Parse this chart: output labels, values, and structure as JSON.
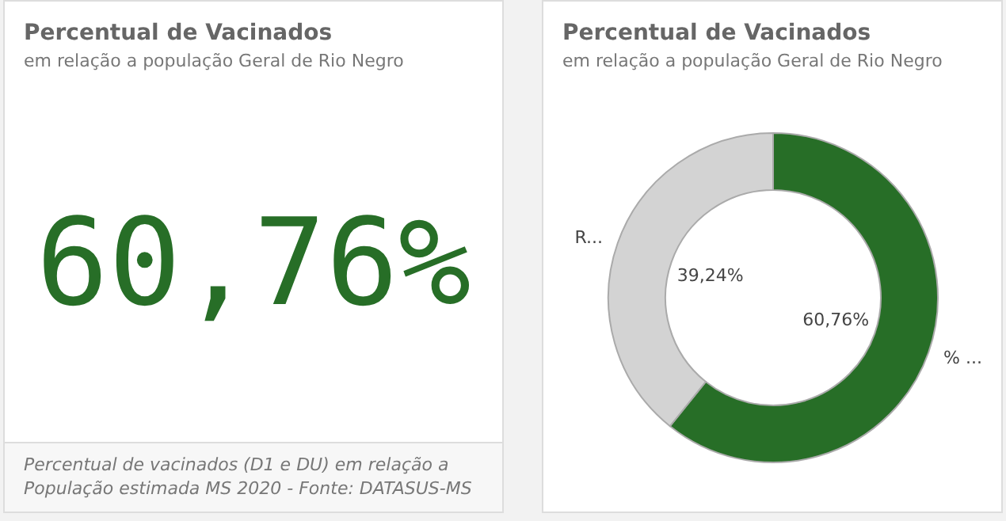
{
  "chart_data": [
    {
      "type": "other",
      "title": "Percentual de Vacinados",
      "subtitle": "em relação a população Geral de Rio Negro",
      "annotations": [
        "60,76%",
        "Percentual de vacinados (D1 e DU) em relação a População estimada MS 2020 - Fonte: DATASUS-MS"
      ]
    },
    {
      "type": "donut",
      "title": "Percentual de Vacinados",
      "subtitle": "em relação a população Geral de Rio Negro",
      "categories": [
        "% ...",
        "R..."
      ],
      "values": [
        60.76,
        39.24
      ],
      "colors": [
        "#276e27",
        "#d3d3d3"
      ],
      "value_labels": [
        "60,76%",
        "39,24%"
      ]
    }
  ]
}
